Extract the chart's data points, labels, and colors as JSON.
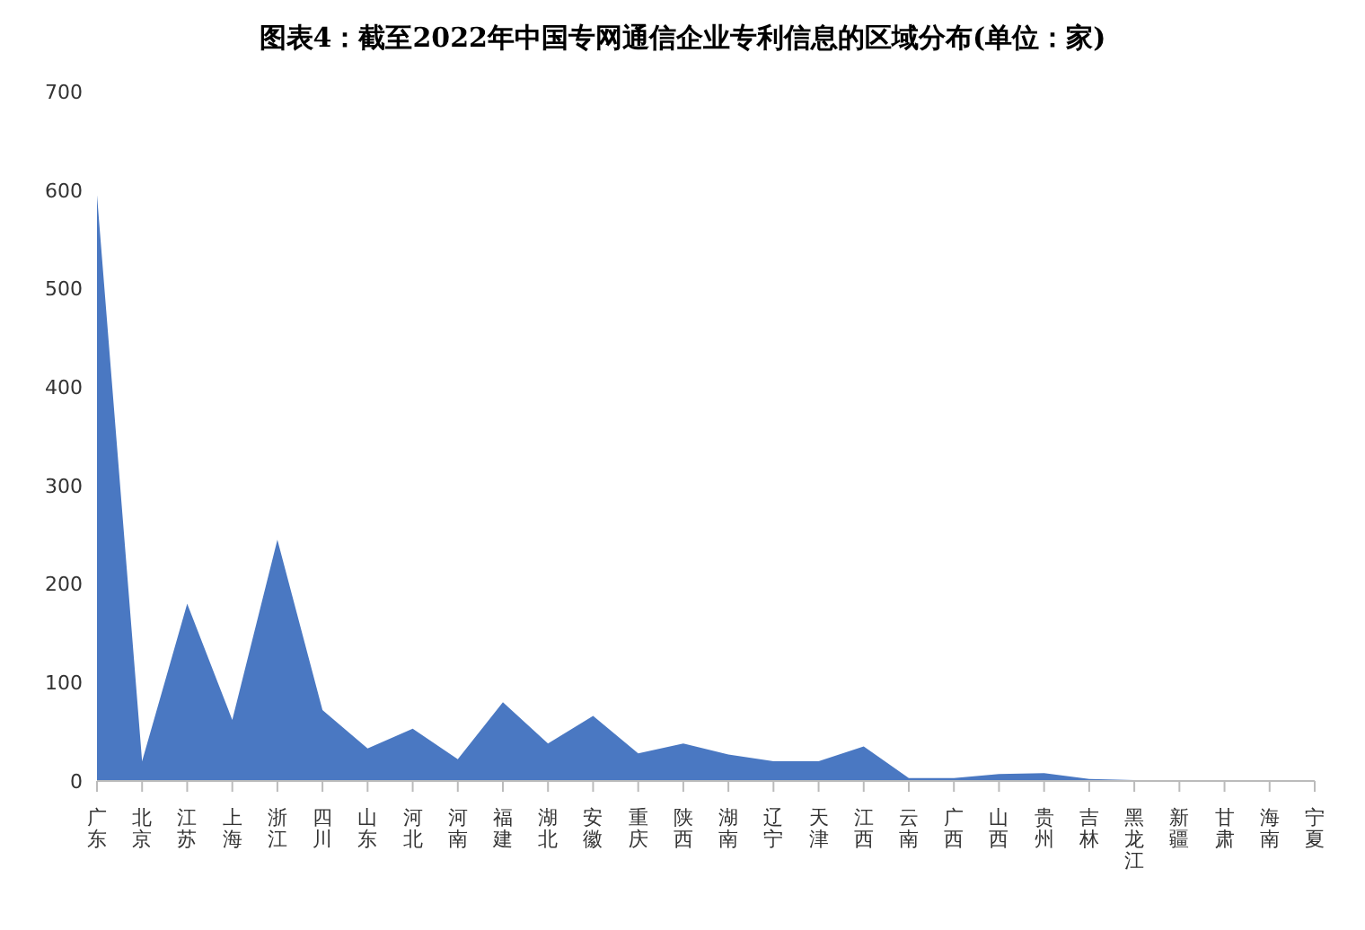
{
  "chart_data": {
    "type": "area",
    "title": "图表4：截至2022年中国专网通信企业专利信息的区域分布(单位：家)",
    "categories": [
      "广东",
      "北京",
      "江苏",
      "上海",
      "浙江",
      "四川",
      "山东",
      "河北",
      "河南",
      "福建",
      "湖北",
      "安徽",
      "重庆",
      "陕西",
      "湖南",
      "辽宁",
      "天津",
      "江西",
      "云南",
      "广西",
      "山西",
      "贵州",
      "吉林",
      "黑龙江",
      "新疆",
      "甘肃",
      "海南",
      "宁夏"
    ],
    "values": [
      595,
      20,
      180,
      62,
      245,
      72,
      33,
      53,
      22,
      80,
      38,
      66,
      28,
      38,
      27,
      20,
      20,
      35,
      3,
      3,
      7,
      8,
      2,
      1,
      1,
      1,
      1,
      1
    ],
    "color": "#4a78c2",
    "ylim": [
      0,
      700
    ],
    "yticks": [
      0,
      100,
      200,
      300,
      400,
      500,
      600,
      700
    ],
    "grid": false,
    "legend": false
  }
}
